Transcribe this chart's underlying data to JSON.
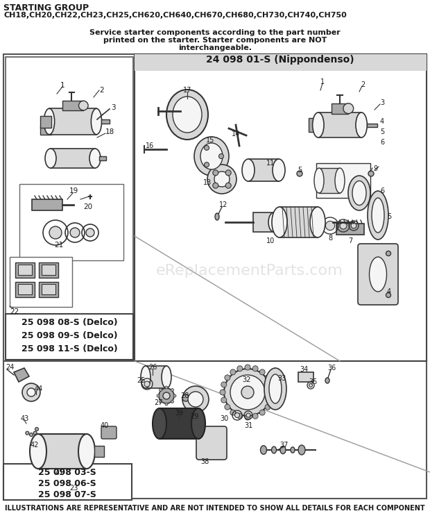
{
  "title_line1": "STARTING GROUP",
  "title_line2": "CH18,CH20,CH22,CH23,CH25,CH620,CH640,CH670,CH680,CH730,CH740,CH750",
  "service_note_line1": "Service starter components according to the part number",
  "service_note_line2": "printed on the starter. Starter components are NOT",
  "service_note_line3": "interchangeable.",
  "nippondenso_label": "24 098 01-S (Nippondenso)",
  "delco_labels": [
    "25 098 08-S (Delco)",
    "25 098 09-S (Delco)",
    "25 098 11-S (Delco)"
  ],
  "bottom_labels": [
    "25 098 03-S",
    "25 098 06-S",
    "25 098 07-S"
  ],
  "footer": "ILLUSTRATIONS ARE REPRESENTATIVE AND ARE NOT INTENDED TO SHOW ALL DETAILS FOR EACH COMPONENT",
  "watermark": "eReplacementParts.com",
  "bg": "#ffffff",
  "gray_light": "#f5f5f5",
  "gray_mid": "#d8d8d8",
  "gray_dark": "#aaaaaa",
  "black": "#1a1a1a",
  "line_color": "#333333"
}
